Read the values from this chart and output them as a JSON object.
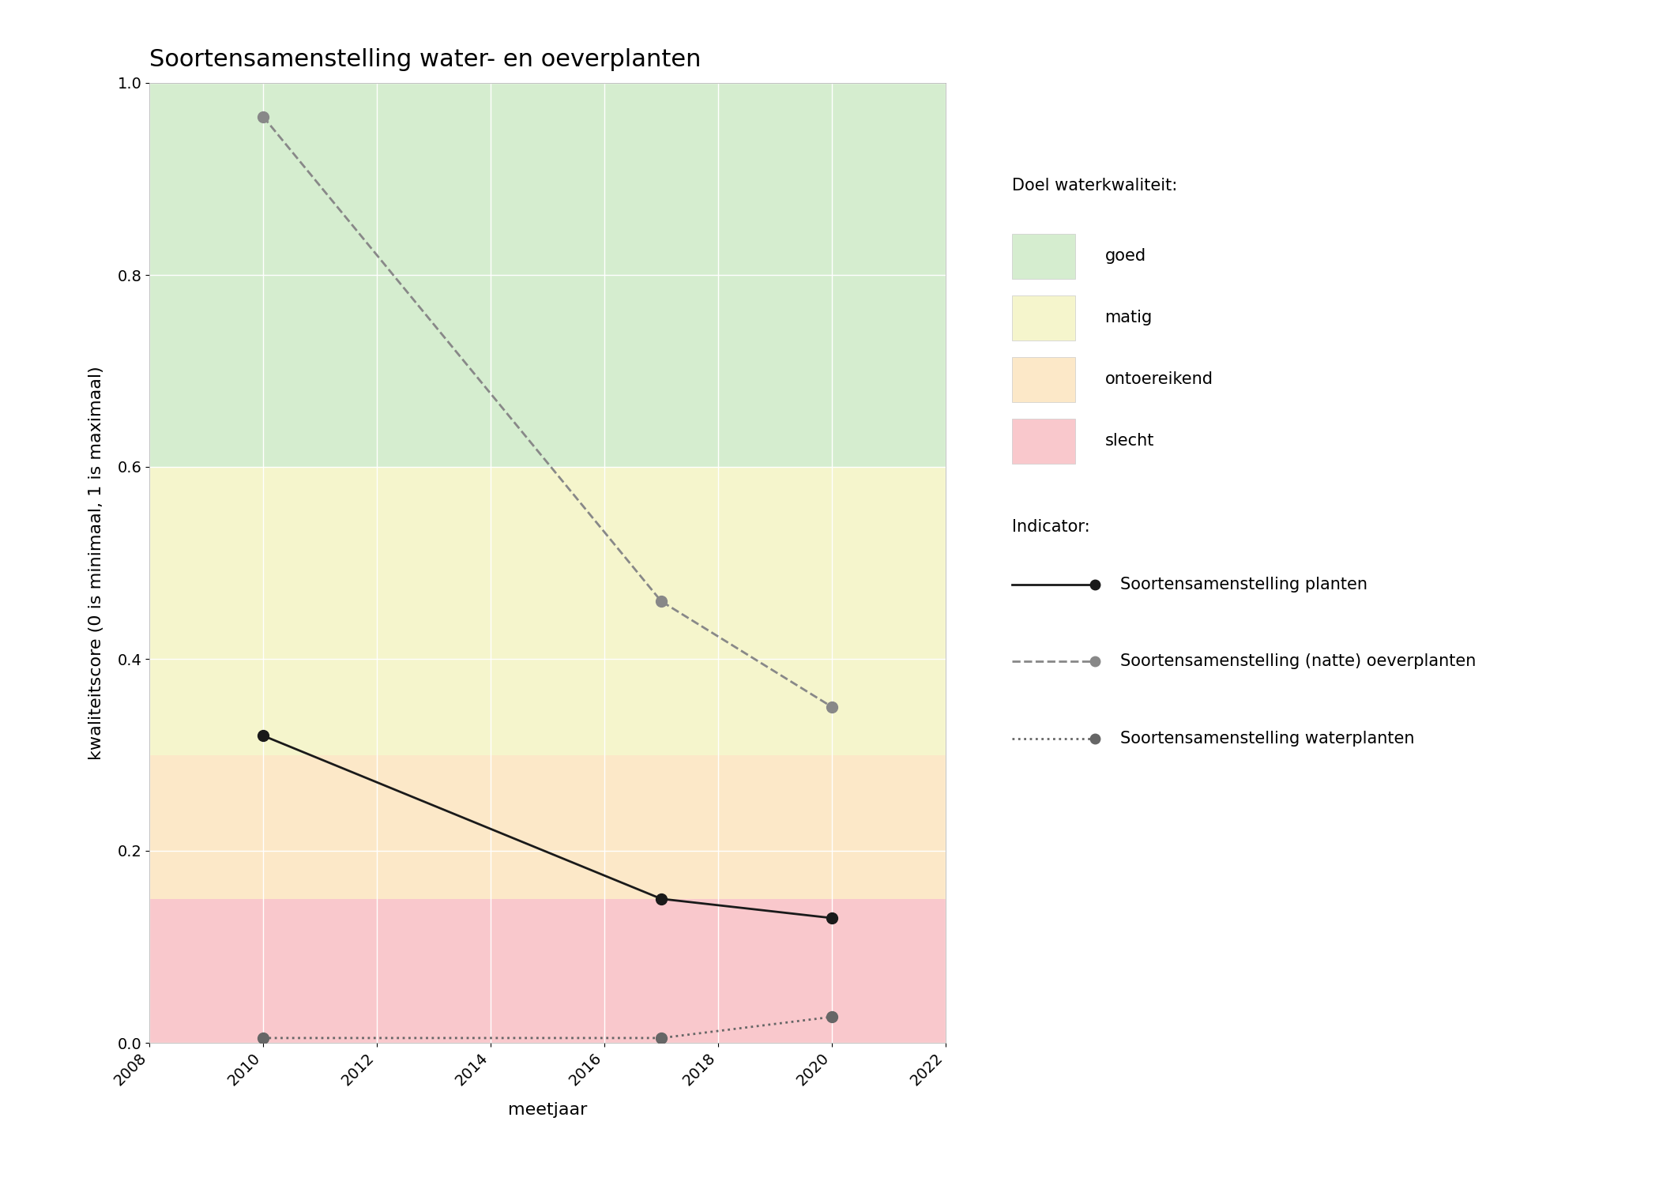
{
  "title": "Soortensamenstelling water- en oeverplanten",
  "xlabel": "meetjaar",
  "ylabel": "kwaliteitscore (0 is minimaal, 1 is maximaal)",
  "xlim": [
    2008,
    2022
  ],
  "ylim": [
    0.0,
    1.0
  ],
  "xticks": [
    2008,
    2010,
    2012,
    2014,
    2016,
    2018,
    2020,
    2022
  ],
  "yticks": [
    0.0,
    0.2,
    0.4,
    0.6,
    0.8,
    1.0
  ],
  "bg_bands": [
    {
      "label": "goed",
      "color": "#d5edcf",
      "ymin": 0.6,
      "ymax": 1.0
    },
    {
      "label": "matig",
      "color": "#f5f5cc",
      "ymin": 0.3,
      "ymax": 0.6
    },
    {
      "label": "ontoereikend",
      "color": "#fce8c8",
      "ymin": 0.15,
      "ymax": 0.3
    },
    {
      "label": "slecht",
      "color": "#f9c8cc",
      "ymin": 0.0,
      "ymax": 0.15
    }
  ],
  "series": [
    {
      "key": "planten",
      "x": [
        2010,
        2017,
        2020
      ],
      "y": [
        0.32,
        0.15,
        0.13
      ],
      "color": "#1a1a1a",
      "linestyle": "solid",
      "linewidth": 2.0,
      "marker": "o",
      "markersize": 10,
      "label": "Soortensamenstelling planten"
    },
    {
      "key": "oeverplanten",
      "x": [
        2010,
        2017,
        2020
      ],
      "y": [
        0.965,
        0.46,
        0.35
      ],
      "color": "#888888",
      "linestyle": "dashed",
      "linewidth": 2.0,
      "marker": "o",
      "markersize": 10,
      "label": "Soortensamenstelling (natte) oeverplanten"
    },
    {
      "key": "waterplanten",
      "x": [
        2010,
        2017,
        2020
      ],
      "y": [
        0.005,
        0.005,
        0.027
      ],
      "color": "#666666",
      "linestyle": "dotted",
      "linewidth": 2.0,
      "marker": "o",
      "markersize": 10,
      "label": "Soortensamenstelling waterplanten"
    }
  ],
  "legend_quality_title": "Doel waterkwaliteit:",
  "legend_quality_items": [
    {
      "label": "goed",
      "color": "#d5edcf"
    },
    {
      "label": "matig",
      "color": "#f5f5cc"
    },
    {
      "label": "ontoereikend",
      "color": "#fce8c8"
    },
    {
      "label": "slecht",
      "color": "#f9c8cc"
    }
  ],
  "legend_indicator_title": "Indicator:",
  "background_color": "#ffffff",
  "plot_bg_color": "#f0f0f0",
  "grid_color": "#ffffff",
  "grid_linewidth": 1.0,
  "title_fontsize": 22,
  "axis_label_fontsize": 16,
  "tick_fontsize": 14,
  "legend_fontsize": 15
}
